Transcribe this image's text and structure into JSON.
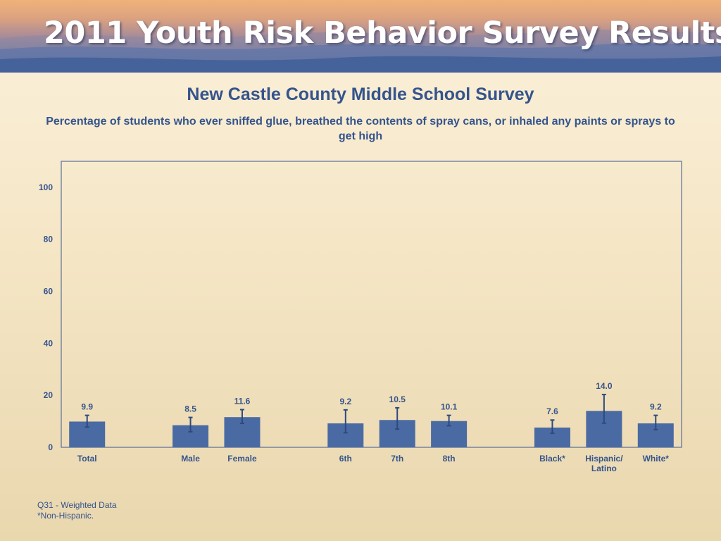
{
  "header": {
    "banner_title": "2011 Youth Risk Behavior Survey Results"
  },
  "colors": {
    "bar": "#4a6aa3",
    "error_bar": "#2c4a7e",
    "text": "#35548c",
    "axis": "#5a6f9a"
  },
  "chart_data": {
    "type": "bar",
    "title": "New Castle County Middle School Survey",
    "subtitle": "Percentage of students who ever sniffed glue, breathed the contents of spray cans, or inhaled any paints or sprays to get high",
    "xlabel": "",
    "ylabel": "",
    "ylim": [
      0,
      110
    ],
    "yticks": [
      0,
      20,
      40,
      60,
      80,
      100
    ],
    "grid": false,
    "categories": [
      {
        "label": [
          "Total"
        ],
        "value": 9.9,
        "value_label": "9.9",
        "ci": [
          7.8,
          12.3
        ]
      },
      null,
      {
        "label": [
          "Male"
        ],
        "value": 8.5,
        "value_label": "8.5",
        "ci": [
          6.0,
          11.5
        ]
      },
      {
        "label": [
          "Female"
        ],
        "value": 11.6,
        "value_label": "11.6",
        "ci": [
          9.2,
          14.5
        ]
      },
      null,
      {
        "label": [
          "6th"
        ],
        "value": 9.2,
        "value_label": "9.2",
        "ci": [
          5.6,
          14.4
        ]
      },
      {
        "label": [
          "7th"
        ],
        "value": 10.5,
        "value_label": "10.5",
        "ci": [
          7.0,
          15.2
        ]
      },
      {
        "label": [
          "8th"
        ],
        "value": 10.1,
        "value_label": "10.1",
        "ci": [
          8.3,
          12.3
        ]
      },
      null,
      {
        "label": [
          "Black*"
        ],
        "value": 7.6,
        "value_label": "7.6",
        "ci": [
          5.4,
          10.5
        ]
      },
      {
        "label": [
          "Hispanic/",
          "Latino"
        ],
        "value": 14.0,
        "value_label": "14.0",
        "ci": [
          9.3,
          20.3
        ]
      },
      {
        "label": [
          "White*"
        ],
        "value": 9.2,
        "value_label": "9.2",
        "ci": [
          6.8,
          12.3
        ]
      }
    ]
  },
  "footnotes": {
    "line1": "Q31 - Weighted Data",
    "line2": "*Non-Hispanic."
  }
}
